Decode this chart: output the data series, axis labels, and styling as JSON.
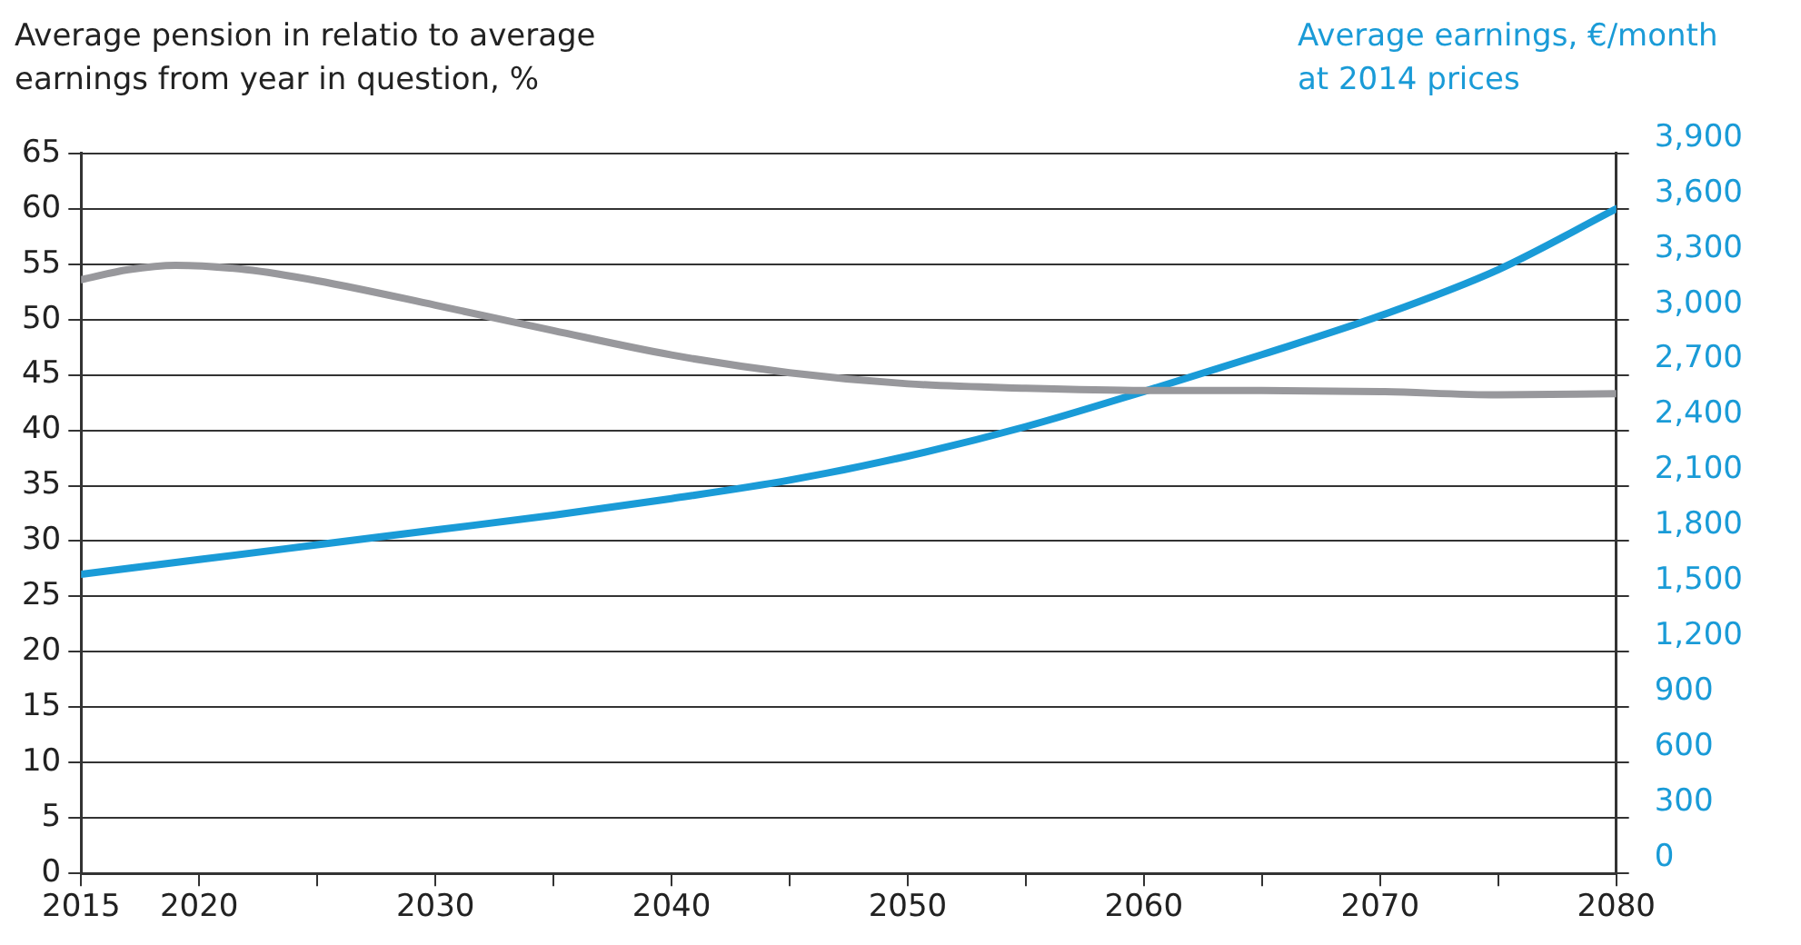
{
  "chart_data": {
    "type": "line",
    "ylabel": "Average pension in relatio to average earnings from year in question, %",
    "y2label": "Average earnings, €/month at 2014 prices",
    "x": [
      2015,
      2017,
      2019,
      2022,
      2025,
      2030,
      2035,
      2040,
      2045,
      2050,
      2055,
      2060,
      2065,
      2070,
      2075,
      2080
    ],
    "series": [
      {
        "color": "#98989c",
        "values": [
          53.6,
          54.5,
          54.9,
          54.5,
          53.5,
          51.3,
          49,
          46.8,
          45.2,
          44.2,
          43.8,
          43.6,
          43.6,
          43.5,
          43.2,
          43.3
        ]
      },
      {
        "color": "#1a9bd7",
        "axis": "y2",
        "x": [
          2015,
          2020,
          2025,
          2030,
          2035,
          2040,
          2045,
          2050,
          2055,
          2060,
          2065,
          2070,
          2075,
          2080
        ],
        "values": [
          1620,
          1700,
          1780,
          1860,
          1940,
          2030,
          2130,
          2260,
          2420,
          2610,
          2810,
          3020,
          3270,
          3600
        ]
      }
    ],
    "xlim": [
      2015,
      2080
    ],
    "xticks": [
      2015,
      2020,
      {
        "value": 2025,
        "label": null
      },
      2030,
      {
        "value": 2035,
        "label": null
      },
      2040,
      {
        "value": 2045,
        "label": null
      },
      2050,
      {
        "value": 2055,
        "label": null
      },
      2060,
      {
        "value": 2065,
        "label": null
      },
      2070,
      {
        "value": 2075,
        "label": null
      },
      2080
    ],
    "ylim": [
      0,
      65
    ],
    "yticks": [
      0,
      5,
      10,
      15,
      20,
      25,
      30,
      35,
      40,
      45,
      50,
      55,
      60,
      65
    ],
    "y2lim": [
      0,
      3900
    ],
    "y2ticks": [
      0,
      300,
      600,
      900,
      {
        "value": 1200,
        "label": "1,200"
      },
      {
        "value": 1500,
        "label": "1,500"
      },
      {
        "value": 1800,
        "label": "1,800"
      },
      {
        "value": 2100,
        "label": "2,100"
      },
      {
        "value": 2400,
        "label": "2,400"
      },
      {
        "value": 2700,
        "label": "2,700"
      },
      {
        "value": 3000,
        "label": "3,000"
      },
      {
        "value": 3300,
        "label": "3,300"
      },
      {
        "value": 3600,
        "label": "3,600"
      },
      {
        "value": 3900,
        "label": "3,900"
      }
    ],
    "grid": "y",
    "legend": false
  }
}
